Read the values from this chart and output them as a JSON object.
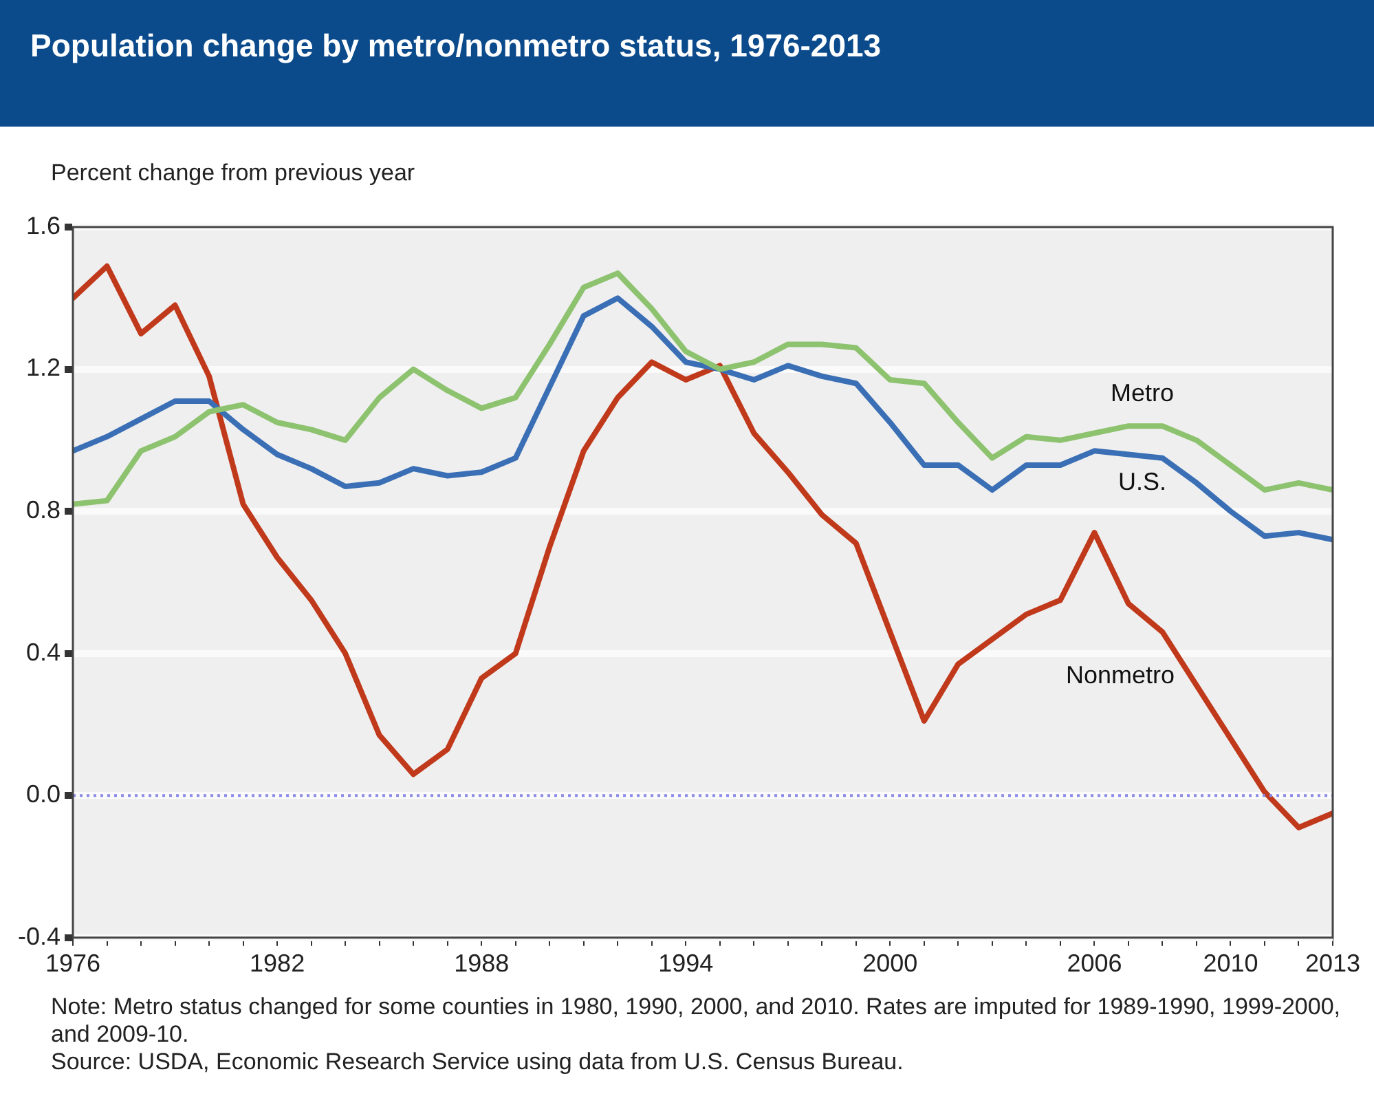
{
  "chart_data": {
    "type": "line",
    "title": "Population change by metro/nonmetro status, 1976-2013",
    "ylabel": "Percent change from previous year",
    "x": [
      1976,
      1977,
      1978,
      1979,
      1980,
      1981,
      1982,
      1983,
      1984,
      1985,
      1986,
      1987,
      1988,
      1989,
      1990,
      1991,
      1992,
      1993,
      1994,
      1995,
      1996,
      1997,
      1998,
      1999,
      2000,
      2001,
      2002,
      2003,
      2004,
      2005,
      2006,
      2007,
      2008,
      2009,
      2010,
      2011,
      2012,
      2013
    ],
    "series": [
      {
        "name": "Metro",
        "color": "#8dc26f",
        "values": [
          0.82,
          0.83,
          0.97,
          1.01,
          1.08,
          1.1,
          1.05,
          1.03,
          1.0,
          1.12,
          1.2,
          1.14,
          1.09,
          1.12,
          1.27,
          1.43,
          1.47,
          1.37,
          1.25,
          1.2,
          1.22,
          1.27,
          1.27,
          1.26,
          1.17,
          1.16,
          1.05,
          0.95,
          1.01,
          1.0,
          1.02,
          1.04,
          1.04,
          1.0,
          0.93,
          0.86,
          0.88,
          0.86
        ]
      },
      {
        "name": "U.S.",
        "color": "#3a6fb5",
        "values": [
          0.97,
          1.01,
          1.06,
          1.11,
          1.11,
          1.03,
          0.96,
          0.92,
          0.87,
          0.88,
          0.92,
          0.9,
          0.91,
          0.95,
          1.15,
          1.35,
          1.4,
          1.32,
          1.22,
          1.2,
          1.17,
          1.21,
          1.18,
          1.16,
          1.05,
          0.93,
          0.93,
          0.86,
          0.93,
          0.93,
          0.97,
          0.96,
          0.95,
          0.88,
          0.8,
          0.73,
          0.74,
          0.72
        ]
      },
      {
        "name": "Nonmetro",
        "color": "#c0391b",
        "values": [
          1.4,
          1.49,
          1.3,
          1.38,
          1.18,
          0.82,
          0.67,
          0.55,
          0.4,
          0.17,
          0.06,
          0.13,
          0.33,
          0.4,
          0.7,
          0.97,
          1.12,
          1.22,
          1.17,
          1.21,
          1.02,
          0.91,
          0.79,
          0.71,
          0.46,
          0.21,
          0.37,
          0.44,
          0.51,
          0.55,
          0.74,
          0.54,
          0.46,
          0.31,
          0.16,
          0.01,
          -0.09,
          -0.05
        ]
      }
    ],
    "xlim": [
      1976,
      2013
    ],
    "xticks": [
      1976,
      {
        "value": 1977,
        "label": null
      },
      {
        "value": 1978,
        "label": null
      },
      {
        "value": 1979,
        "label": null
      },
      {
        "value": 1980,
        "label": null
      },
      {
        "value": 1981,
        "label": null
      },
      1982,
      {
        "value": 1983,
        "label": null
      },
      {
        "value": 1984,
        "label": null
      },
      {
        "value": 1985,
        "label": null
      },
      {
        "value": 1986,
        "label": null
      },
      {
        "value": 1987,
        "label": null
      },
      1988,
      {
        "value": 1989,
        "label": null
      },
      {
        "value": 1990,
        "label": null
      },
      {
        "value": 1991,
        "label": null
      },
      {
        "value": 1992,
        "label": null
      },
      {
        "value": 1993,
        "label": null
      },
      1994,
      {
        "value": 1995,
        "label": null
      },
      {
        "value": 1996,
        "label": null
      },
      {
        "value": 1997,
        "label": null
      },
      {
        "value": 1998,
        "label": null
      },
      {
        "value": 1999,
        "label": null
      },
      2000,
      {
        "value": 2001,
        "label": null
      },
      {
        "value": 2002,
        "label": null
      },
      {
        "value": 2003,
        "label": null
      },
      {
        "value": 2004,
        "label": null
      },
      {
        "value": 2005,
        "label": null
      },
      2006,
      {
        "value": 2007,
        "label": null
      },
      {
        "value": 2008,
        "label": null
      },
      {
        "value": 2009,
        "label": null
      },
      2010,
      {
        "value": 2011,
        "label": null
      },
      {
        "value": 2012,
        "label": null
      },
      2013
    ],
    "ylim": [
      -0.4,
      1.6
    ],
    "yticks": [
      {
        "value": -0.4,
        "label": "-0.4"
      },
      {
        "value": 0,
        "label": "0.0"
      },
      {
        "value": 0.4,
        "label": "0.4"
      },
      {
        "value": 0.8,
        "label": "0.8"
      },
      {
        "value": 1.2,
        "label": "1.2"
      },
      {
        "value": 1.6,
        "label": "1.6"
      }
    ],
    "grid": "y",
    "legend": false,
    "marker": "none",
    "line_style": "solid",
    "ref_lines": [
      {
        "axis": "y",
        "value": 0,
        "color": "#8a8ae8",
        "line_style": "dotted"
      }
    ],
    "annotations": [
      "Note: Metro status changed for some counties in 1980, 1990, 2000, and 2010. Rates are imputed for 1989-1990, 1999-2000, and 2009-10.",
      "Source: USDA, Economic Research Service using data from U.S. Census Bureau."
    ]
  }
}
